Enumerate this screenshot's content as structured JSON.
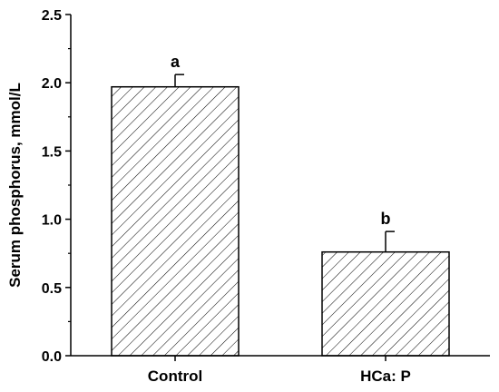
{
  "chart_data": {
    "type": "bar",
    "categories": [
      "Control",
      "HCa: P"
    ],
    "values": [
      1.97,
      0.76
    ],
    "errors": [
      0.09,
      0.15
    ],
    "significance_labels": [
      "a",
      "b"
    ],
    "ylabel": "Serum phosphorus, mmol/L",
    "ylim": [
      0,
      2.5
    ],
    "yticks": [
      "0.0",
      "0.5",
      "1.0",
      "1.5",
      "2.0",
      "2.5"
    ],
    "bar_fill": "hatched",
    "grid": false,
    "colors": {
      "bar_stroke": "#000000",
      "hatch": "#000000",
      "background": "#ffffff"
    }
  }
}
